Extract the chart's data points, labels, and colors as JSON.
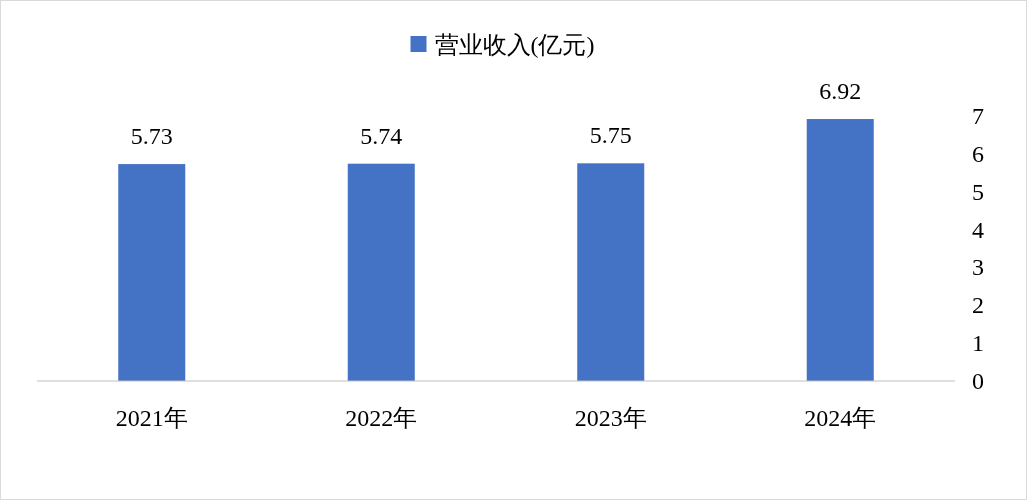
{
  "chart_data": {
    "type": "bar",
    "categories": [
      "2021年",
      "2022年",
      "2023年",
      "2024年"
    ],
    "series": [
      {
        "name": "营业收入(亿元)",
        "color": "#4472c4",
        "values": [
          5.73,
          5.74,
          5.75,
          6.92
        ]
      }
    ],
    "ylim": [
      0,
      7
    ],
    "yticks": [
      0,
      1,
      2,
      3,
      4,
      5,
      6,
      7
    ],
    "data_labels": true,
    "legend": "top",
    "grid": false
  }
}
